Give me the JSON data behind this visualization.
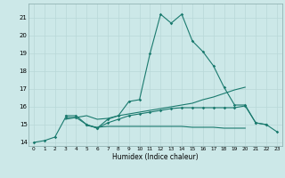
{
  "xlabel": "Humidex (Indice chaleur)",
  "bg_color": "#cce8e8",
  "line_color": "#1a7a6e",
  "grid_color": "#b8d8d8",
  "xlim": [
    -0.5,
    23.5
  ],
  "ylim": [
    13.8,
    21.8
  ],
  "yticks": [
    14,
    15,
    16,
    17,
    18,
    19,
    20,
    21
  ],
  "xticks": [
    0,
    1,
    2,
    3,
    4,
    5,
    6,
    7,
    8,
    9,
    10,
    11,
    12,
    13,
    14,
    15,
    16,
    17,
    18,
    19,
    20,
    21,
    22,
    23
  ],
  "line0_x": [
    0,
    1,
    2,
    3,
    4,
    5,
    6,
    7,
    8,
    9,
    10,
    11,
    12,
    13,
    14,
    15,
    16,
    17,
    18,
    19,
    20,
    21,
    22,
    23
  ],
  "line0_y": [
    14.0,
    14.1,
    14.3,
    15.4,
    15.4,
    15.0,
    14.8,
    15.3,
    15.5,
    16.3,
    16.4,
    19.0,
    21.2,
    20.7,
    21.2,
    19.7,
    19.1,
    18.3,
    17.1,
    16.1,
    16.1,
    15.1,
    15.0,
    14.6
  ],
  "line1_x": [
    3,
    4,
    5,
    6,
    7,
    8,
    9,
    10,
    11,
    12,
    13,
    14,
    15,
    16,
    17,
    18,
    19,
    20
  ],
  "line1_y": [
    15.3,
    15.4,
    15.5,
    15.3,
    15.35,
    15.5,
    15.6,
    15.7,
    15.8,
    15.9,
    16.0,
    16.1,
    16.2,
    16.4,
    16.55,
    16.75,
    16.95,
    17.1
  ],
  "line2_x": [
    3,
    4,
    5,
    6,
    7,
    8,
    9,
    10,
    11,
    12,
    13,
    14,
    15,
    16,
    17,
    18,
    19,
    20,
    21,
    22
  ],
  "line2_y": [
    15.5,
    15.5,
    15.0,
    14.8,
    15.1,
    15.3,
    15.5,
    15.6,
    15.7,
    15.8,
    15.9,
    15.95,
    15.95,
    15.95,
    15.95,
    15.95,
    15.95,
    16.05,
    15.1,
    15.0
  ],
  "line3_x": [
    5,
    6,
    7,
    8,
    9,
    10,
    11,
    12,
    13,
    14,
    15,
    16,
    17,
    18,
    19,
    20
  ],
  "line3_y": [
    14.95,
    14.85,
    14.9,
    14.9,
    14.9,
    14.9,
    14.9,
    14.9,
    14.9,
    14.9,
    14.85,
    14.85,
    14.85,
    14.8,
    14.8,
    14.8
  ],
  "lw": 0.8,
  "ms": 1.8
}
